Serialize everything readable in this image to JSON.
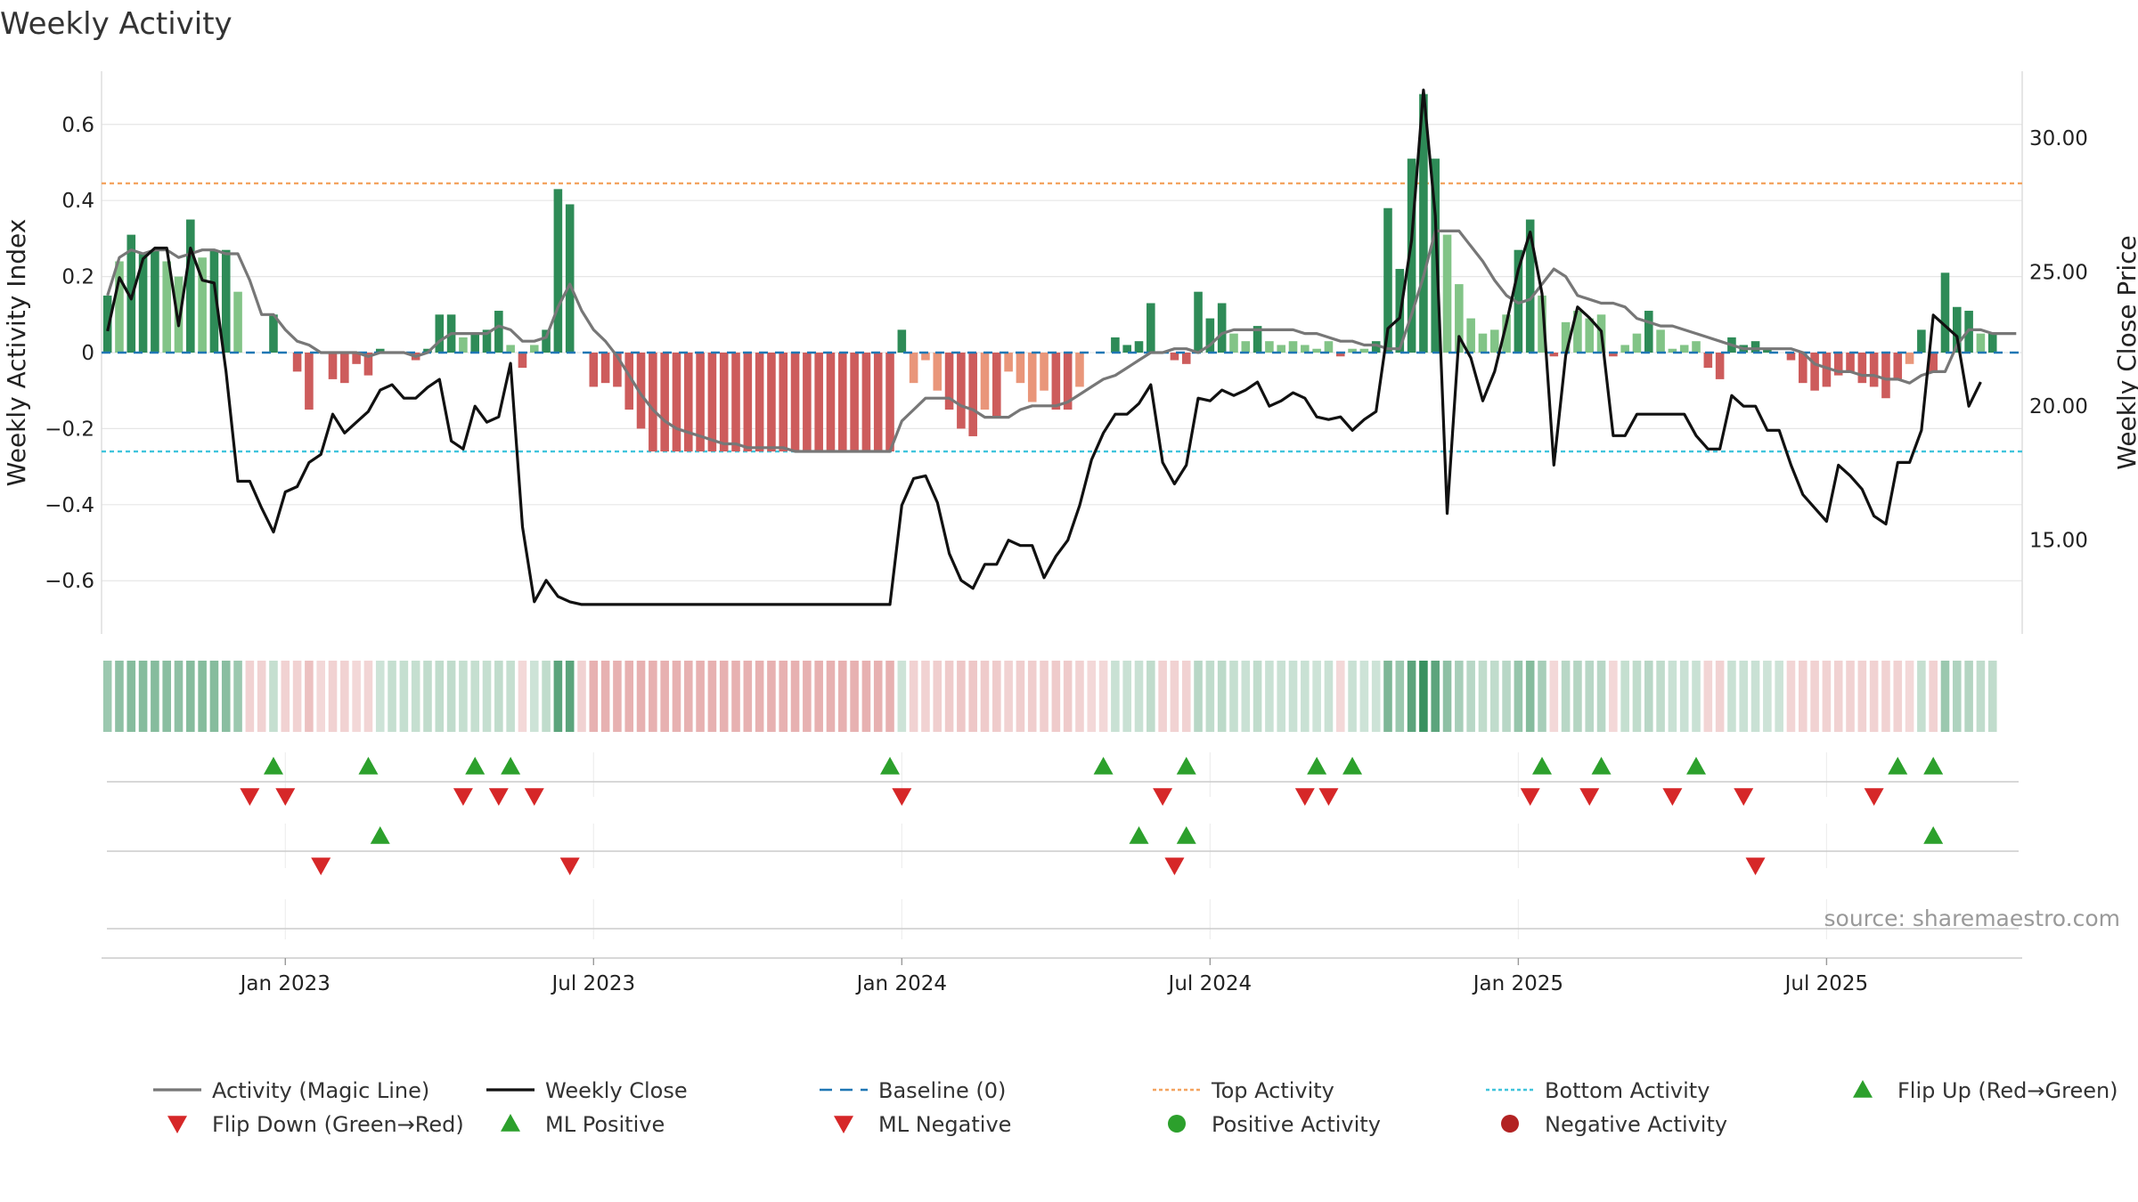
{
  "chart_data": {
    "type": "bar",
    "title": "Weekly Activity",
    "ylabel": "Weekly Activity Index",
    "y2label": "Weekly Close Price",
    "source": "source: sharemaestro.com",
    "ylim": [
      -0.74,
      0.74
    ],
    "y2lim": [
      11.5,
      32.5
    ],
    "yticks": [
      -0.6,
      -0.4,
      -0.2,
      0,
      0.2,
      0.4,
      0.6
    ],
    "ytick_labels": [
      "−0.6",
      "−0.4",
      "−0.2",
      "0",
      "0.2",
      "0.4",
      "0.6"
    ],
    "y2ticks": [
      15,
      20,
      25,
      30
    ],
    "y2tick_labels": [
      "15.00",
      "20.00",
      "25.00",
      "30.00"
    ],
    "x_weeks": 162,
    "xticks": [
      {
        "week": 15,
        "label": "Jan 2023"
      },
      {
        "week": 41,
        "label": "Jul 2023"
      },
      {
        "week": 67,
        "label": "Jan 2024"
      },
      {
        "week": 93,
        "label": "Jul 2024"
      },
      {
        "week": 119,
        "label": "Jan 2025"
      },
      {
        "week": 145,
        "label": "Jul 2025"
      }
    ],
    "top_activity": 0.445,
    "bottom_activity": -0.26,
    "activity": [
      0.15,
      0.24,
      0.31,
      0.26,
      0.27,
      0.24,
      0.2,
      0.35,
      0.25,
      0.27,
      0.27,
      0.16,
      0,
      0,
      0.1,
      0,
      -0.05,
      -0.15,
      0,
      -0.07,
      -0.08,
      -0.03,
      -0.06,
      0.01,
      0,
      0,
      -0.02,
      0.01,
      0.1,
      0.1,
      0.04,
      0.05,
      0.06,
      0.11,
      0.02,
      -0.04,
      0.02,
      0.06,
      0.43,
      0.39,
      0,
      -0.09,
      -0.08,
      -0.09,
      -0.15,
      -0.2,
      -0.26,
      -0.26,
      -0.26,
      -0.26,
      -0.26,
      -0.26,
      -0.26,
      -0.26,
      -0.26,
      -0.26,
      -0.26,
      -0.26,
      -0.26,
      -0.26,
      -0.26,
      -0.26,
      -0.26,
      -0.26,
      -0.26,
      -0.26,
      -0.26,
      0.06,
      -0.08,
      -0.02,
      -0.1,
      -0.15,
      -0.2,
      -0.22,
      -0.15,
      -0.17,
      -0.05,
      -0.08,
      -0.13,
      -0.1,
      -0.15,
      -0.15,
      -0.09,
      0,
      0,
      0.04,
      0.02,
      0.03,
      0.13,
      0,
      -0.02,
      -0.03,
      0.16,
      0.09,
      0.13,
      0.05,
      0.03,
      0.07,
      0.03,
      0.02,
      0.03,
      0.02,
      0.01,
      0.03,
      -0.01,
      0.01,
      0.01,
      0.03,
      0.38,
      0.22,
      0.51,
      0.68,
      0.51,
      0.31,
      0.18,
      0.09,
      0.05,
      0.06,
      0.1,
      0.27,
      0.35,
      0.15,
      -0.01,
      0.08,
      0.11,
      0.09,
      0.1,
      -0.01,
      0.02,
      0.05,
      0.11,
      0.06,
      0.01,
      0.02,
      0.03,
      -0.04,
      -0.07,
      0.04,
      0.02,
      0.03,
      0.01,
      0,
      -0.02,
      -0.08,
      -0.1,
      -0.09,
      -0.06,
      -0.05,
      -0.08,
      -0.09,
      -0.12,
      -0.07,
      -0.03,
      0.06,
      -0.05,
      0.21,
      0.12,
      0.11,
      0.05,
      0.05
    ],
    "magic_line": [
      0.15,
      0.25,
      0.27,
      0.26,
      0.27,
      0.27,
      0.25,
      0.26,
      0.27,
      0.27,
      0.26,
      0.26,
      0.19,
      0.1,
      0.1,
      0.06,
      0.03,
      0.02,
      0,
      0,
      0,
      0,
      -0.01,
      0,
      0,
      0,
      -0.01,
      0,
      0.03,
      0.05,
      0.05,
      0.05,
      0.05,
      0.07,
      0.06,
      0.03,
      0.03,
      0.04,
      0.12,
      0.18,
      0.11,
      0.06,
      0.03,
      -0.01,
      -0.06,
      -0.11,
      -0.15,
      -0.18,
      -0.2,
      -0.21,
      -0.22,
      -0.23,
      -0.24,
      -0.24,
      -0.25,
      -0.25,
      -0.25,
      -0.25,
      -0.26,
      -0.26,
      -0.26,
      -0.26,
      -0.26,
      -0.26,
      -0.26,
      -0.26,
      -0.26,
      -0.18,
      -0.15,
      -0.12,
      -0.12,
      -0.12,
      -0.14,
      -0.15,
      -0.17,
      -0.17,
      -0.17,
      -0.15,
      -0.14,
      -0.14,
      -0.14,
      -0.13,
      -0.11,
      -0.09,
      -0.07,
      -0.06,
      -0.04,
      -0.02,
      0,
      0,
      0.01,
      0.01,
      0,
      0.02,
      0.05,
      0.06,
      0.06,
      0.06,
      0.06,
      0.06,
      0.06,
      0.05,
      0.05,
      0.04,
      0.03,
      0.03,
      0.02,
      0.02,
      0.01,
      0.01,
      0.1,
      0.2,
      0.32,
      0.32,
      0.32,
      0.28,
      0.24,
      0.19,
      0.15,
      0.13,
      0.14,
      0.18,
      0.22,
      0.2,
      0.15,
      0.14,
      0.13,
      0.13,
      0.12,
      0.09,
      0.08,
      0.07,
      0.07,
      0.06,
      0.05,
      0.04,
      0.03,
      0.02,
      0.01,
      0.01,
      0.01,
      0.01,
      0.01,
      0,
      -0.03,
      -0.04,
      -0.05,
      -0.05,
      -0.06,
      -0.06,
      -0.07,
      -0.07,
      -0.08,
      -0.06,
      -0.05,
      -0.05,
      0.02,
      0.06,
      0.06,
      0.05,
      0.05,
      0.05
    ],
    "weekly_close": [
      22.8,
      24.8,
      24,
      25.5,
      25.9,
      25.9,
      23,
      25.9,
      24.7,
      24.6,
      21.3,
      17.2,
      17.2,
      16.2,
      15.3,
      16.8,
      17,
      17.9,
      18.2,
      19.7,
      19,
      19.4,
      19.8,
      20.6,
      20.8,
      20.3,
      20.3,
      20.7,
      21,
      18.7,
      18.4,
      20,
      19.4,
      19.6,
      21.6,
      15.5,
      12.7,
      13.5,
      12.9,
      12.7,
      12.6,
      12.6,
      12.6,
      12.6,
      12.6,
      12.6,
      12.6,
      12.6,
      12.6,
      12.6,
      12.6,
      12.6,
      12.6,
      12.6,
      12.6,
      12.6,
      12.6,
      12.6,
      12.6,
      12.6,
      12.6,
      12.6,
      12.6,
      12.6,
      12.6,
      12.6,
      12.6,
      16.3,
      17.3,
      17.4,
      16.4,
      14.5,
      13.5,
      13.2,
      14.1,
      14.1,
      15,
      14.8,
      14.8,
      13.6,
      14.4,
      15,
      16.3,
      18,
      19,
      19.7,
      19.7,
      20.1,
      20.8,
      17.9,
      17.1,
      17.8,
      20.3,
      20.2,
      20.6,
      20.4,
      20.6,
      20.9,
      20,
      20.2,
      20.5,
      20.3,
      19.6,
      19.5,
      19.6,
      19.1,
      19.5,
      19.8,
      22.9,
      23.3,
      26.2,
      31.8,
      27.1,
      16,
      22.6,
      21.8,
      20.2,
      21.3,
      23.1,
      25.1,
      26.5,
      24.2,
      17.8,
      21.9,
      23.7,
      23.3,
      22.8,
      18.9,
      18.9,
      19.7,
      19.7,
      19.7,
      19.7,
      19.7,
      18.9,
      18.4,
      18.4,
      20.4,
      20,
      20,
      19.1,
      19.1,
      17.8,
      16.7,
      16.2,
      15.7,
      17.8,
      17.4,
      16.9,
      15.9,
      15.6,
      17.9,
      17.9,
      19.1,
      23.4,
      23,
      22.6,
      20,
      20.9
    ],
    "strip": [
      0.15,
      0.18,
      0.2,
      0.2,
      0.2,
      0.19,
      0.18,
      0.2,
      0.2,
      0.2,
      0.19,
      0.15,
      -0.05,
      -0.05,
      0.05,
      -0.05,
      -0.05,
      -0.1,
      -0.03,
      -0.05,
      -0.05,
      -0.03,
      -0.04,
      0.03,
      0.05,
      0.05,
      0.05,
      0.06,
      0.06,
      0.06,
      0.05,
      0.05,
      0.05,
      0.06,
      0.05,
      -0.03,
      0.03,
      0.06,
      0.3,
      0.3,
      -0.05,
      -0.15,
      -0.15,
      -0.15,
      -0.15,
      -0.15,
      -0.15,
      -0.15,
      -0.15,
      -0.15,
      -0.15,
      -0.15,
      -0.15,
      -0.15,
      -0.15,
      -0.15,
      -0.15,
      -0.15,
      -0.15,
      -0.15,
      -0.15,
      -0.15,
      -0.15,
      -0.15,
      -0.15,
      -0.15,
      -0.15,
      0.03,
      -0.05,
      -0.05,
      -0.06,
      -0.07,
      -0.08,
      -0.08,
      -0.07,
      -0.07,
      -0.05,
      -0.06,
      -0.06,
      -0.06,
      -0.07,
      -0.07,
      -0.05,
      -0.03,
      -0.03,
      0.04,
      0.04,
      0.04,
      0.06,
      -0.05,
      -0.05,
      -0.05,
      0.08,
      0.06,
      0.07,
      0.05,
      0.04,
      0.06,
      0.04,
      0.04,
      0.04,
      0.04,
      0.03,
      0.04,
      -0.03,
      0.04,
      0.03,
      0.03,
      0.22,
      0.15,
      0.3,
      0.4,
      0.3,
      0.18,
      0.12,
      0.08,
      0.06,
      0.06,
      0.08,
      0.16,
      0.2,
      0.12,
      -0.03,
      0.08,
      0.09,
      0.08,
      0.08,
      -0.03,
      0.05,
      0.06,
      0.08,
      0.06,
      0.04,
      0.04,
      0.04,
      -0.04,
      -0.05,
      0.04,
      0.04,
      0.04,
      0.03,
      0.03,
      -0.04,
      -0.05,
      -0.05,
      -0.05,
      -0.05,
      -0.05,
      -0.05,
      -0.05,
      -0.05,
      -0.05,
      -0.03,
      0.05,
      -0.05,
      0.15,
      0.1,
      0.09,
      0.06,
      0.06
    ],
    "flip_up": [
      14,
      22,
      31,
      34,
      66,
      84,
      91,
      102,
      105,
      121,
      126,
      134,
      151,
      154
    ],
    "flip_down": [
      12,
      15,
      30,
      33,
      36,
      67,
      89,
      101,
      103,
      120,
      125,
      132,
      138,
      149
    ],
    "ml_positive": [
      23,
      87,
      91,
      154
    ],
    "ml_negative": [
      18,
      39,
      90,
      139
    ],
    "positive_activity": [],
    "negative_activity": [],
    "legend": [
      {
        "label": "Activity (Magic Line)",
        "kind": "line",
        "color": "#777777"
      },
      {
        "label": "Weekly Close",
        "kind": "line",
        "color": "#111111"
      },
      {
        "label": "Baseline (0)",
        "kind": "dash",
        "color": "#1f77b4"
      },
      {
        "label": "Top Activity",
        "kind": "dot",
        "color": "#f4a460"
      },
      {
        "label": "Bottom Activity",
        "kind": "dot",
        "color": "#40c4dc"
      },
      {
        "label": "Flip Up (Red→Green)",
        "kind": "tri-up",
        "color": "#2ca02c"
      },
      {
        "label": "Flip Down (Green→Red)",
        "kind": "tri-down",
        "color": "#d62728"
      },
      {
        "label": "ML Positive",
        "kind": "tri-up",
        "color": "#2ca02c"
      },
      {
        "label": "ML Negative",
        "kind": "tri-down",
        "color": "#d62728"
      },
      {
        "label": "Positive Activity",
        "kind": "circle",
        "color": "#2ca02c"
      },
      {
        "label": "Negative Activity",
        "kind": "circle",
        "color": "#b22222"
      }
    ],
    "colors": {
      "pos_strong": "#2e8b57",
      "pos_light": "#82c487",
      "neg_strong": "#cd5c5c",
      "neg_light": "#e9967a",
      "magic_line": "#777777",
      "close": "#111111",
      "baseline": "#1f77b4",
      "top": "#f4a460",
      "bottom": "#40c4dc",
      "up_marker": "#2ca02c",
      "down_marker": "#d62728",
      "grid": "#e6e6e6",
      "axis": "#dddddd"
    }
  }
}
